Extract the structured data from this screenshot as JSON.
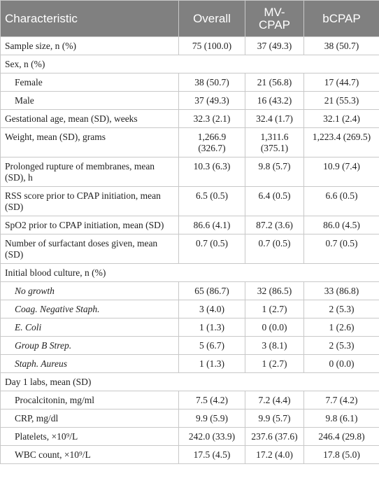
{
  "table": {
    "columns": [
      "Characteristic",
      "Overall",
      "MV-CPAP",
      "bCPAP"
    ],
    "rows": [
      {
        "label": "Sample size, n (%)",
        "values": [
          "75 (100.0)",
          "37 (49.3)",
          "38 (50.7)"
        ]
      },
      {
        "label": "Sex, n (%)",
        "section": true
      },
      {
        "label": "Female",
        "indent": true,
        "values": [
          "38 (50.7)",
          "21 (56.8)",
          "17 (44.7)"
        ]
      },
      {
        "label": "Male",
        "indent": true,
        "values": [
          "37 (49.3)",
          "16 (43.2)",
          "21 (55.3)"
        ]
      },
      {
        "label": "Gestational age, mean (SD), weeks",
        "values": [
          "32.3 (2.1)",
          "32.4 (1.7)",
          "32.1 (2.4)"
        ]
      },
      {
        "label": "Weight, mean (SD), grams",
        "values": [
          "1,266.9 (326.7)",
          "1,311.6 (375.1)",
          "1,223.4 (269.5)"
        ]
      },
      {
        "label": "Prolonged rupture of membranes, mean (SD), h",
        "values": [
          "10.3 (6.3)",
          "9.8 (5.7)",
          "10.9 (7.4)"
        ]
      },
      {
        "label": "RSS score prior to CPAP initiation, mean (SD)",
        "values": [
          "6.5 (0.5)",
          "6.4 (0.5)",
          "6.6 (0.5)"
        ]
      },
      {
        "label": "SpO2 prior to CPAP initiation, mean (SD)",
        "values": [
          "86.6 (4.1)",
          "87.2 (3.6)",
          "86.0 (4.5)"
        ]
      },
      {
        "label": "Number of surfactant doses given, mean (SD)",
        "values": [
          "0.7 (0.5)",
          "0.7 (0.5)",
          "0.7 (0.5)"
        ]
      },
      {
        "label": "Initial blood culture, n (%)",
        "section": true
      },
      {
        "label": "No growth",
        "indent": true,
        "italic": true,
        "values": [
          "65 (86.7)",
          "32 (86.5)",
          "33 (86.8)"
        ]
      },
      {
        "label": "Coag. Negative Staph.",
        "indent": true,
        "italic": true,
        "values": [
          "3 (4.0)",
          "1 (2.7)",
          "2 (5.3)"
        ]
      },
      {
        "label": "E. Coli",
        "indent": true,
        "italic": true,
        "values": [
          "1 (1.3)",
          "0 (0.0)",
          "1 (2.6)"
        ]
      },
      {
        "label": "Group B Strep.",
        "indent": true,
        "italic": true,
        "values": [
          "5 (6.7)",
          "3 (8.1)",
          "2 (5.3)"
        ]
      },
      {
        "label": "Staph. Aureus",
        "indent": true,
        "italic": true,
        "values": [
          "1 (1.3)",
          "1 (2.7)",
          "0 (0.0)"
        ]
      },
      {
        "label": "Day 1 labs, mean (SD)",
        "section": true
      },
      {
        "label": "Procalcitonin, mg/ml",
        "indent": true,
        "values": [
          "7.5 (4.2)",
          "7.2 (4.4)",
          "7.7 (4.2)"
        ]
      },
      {
        "label": "CRP, mg/dl",
        "indent": true,
        "values": [
          "9.9 (5.9)",
          "9.9 (5.7)",
          "9.8 (6.1)"
        ]
      },
      {
        "label": "Platelets, ×10⁹/L",
        "indent": true,
        "values": [
          "242.0 (33.9)",
          "237.6 (37.6)",
          "246.4 (29.8)"
        ]
      },
      {
        "label": "WBC count, ×10⁹/L",
        "indent": true,
        "values": [
          "17.5 (4.5)",
          "17.2 (4.0)",
          "17.8 (5.0)"
        ]
      }
    ]
  }
}
